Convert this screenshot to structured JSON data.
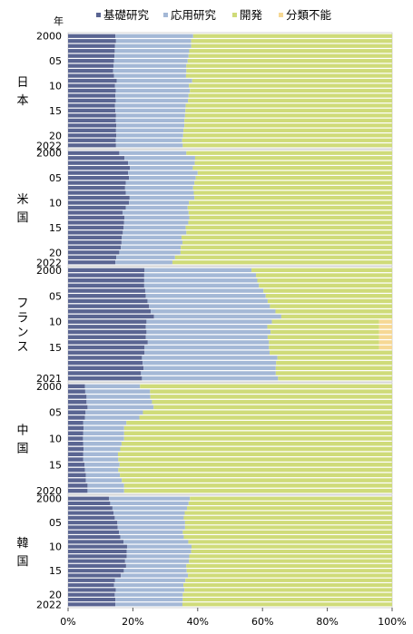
{
  "chart_data": {
    "type": "bar",
    "orientation": "horizontal",
    "stacked": true,
    "year_axis_label": "年",
    "legend": [
      {
        "key": "basic",
        "label": "基礎研究",
        "color": "#5a6592"
      },
      {
        "key": "applied",
        "label": "応用研究",
        "color": "#a4b8d6"
      },
      {
        "key": "dev",
        "label": "開発",
        "color": "#cfdb79"
      },
      {
        "key": "unclass",
        "label": "分類不能",
        "color": "#f6d894"
      }
    ],
    "xlim": [
      0,
      100
    ],
    "x_ticks": [
      "0%",
      "20%",
      "40%",
      "60%",
      "80%",
      "100%"
    ],
    "grid": false,
    "panels": [
      {
        "country": "日本",
        "years": [
          2000,
          2001,
          2002,
          2003,
          2004,
          2005,
          2006,
          2007,
          2008,
          2009,
          2010,
          2011,
          2012,
          2013,
          2014,
          2015,
          2016,
          2017,
          2018,
          2019,
          2020,
          2021,
          2022
        ],
        "tick_labels": [
          {
            "year": 2000,
            "label": "2000"
          },
          {
            "year": 2005,
            "label": "05"
          },
          {
            "year": 2010,
            "label": "10"
          },
          {
            "year": 2015,
            "label": "15"
          },
          {
            "year": 2020,
            "label": "20"
          },
          {
            "year": 2022,
            "label": "2022"
          }
        ],
        "basic": [
          14.6,
          14.8,
          14.5,
          14.4,
          14.3,
          14.2,
          14.0,
          13.9,
          14.2,
          15.0,
          14.5,
          14.7,
          14.6,
          14.7,
          14.5,
          14.6,
          14.8,
          14.7,
          14.9,
          14.8,
          14.9,
          14.7,
          14.8
        ],
        "applied": [
          24.0,
          23.2,
          23.5,
          23.0,
          22.9,
          22.7,
          22.5,
          22.6,
          22.2,
          23.3,
          22.8,
          22.9,
          22.6,
          22.3,
          21.8,
          21.6,
          21.3,
          21.2,
          21.0,
          20.8,
          20.6,
          20.5,
          20.6
        ],
        "dev": [
          61.4,
          62.0,
          62.0,
          62.6,
          62.8,
          63.1,
          63.5,
          63.5,
          63.6,
          61.7,
          62.7,
          62.4,
          62.8,
          63.0,
          63.7,
          63.8,
          63.9,
          64.1,
          64.1,
          64.4,
          64.5,
          64.8,
          64.6
        ],
        "unclass": [
          0,
          0,
          0,
          0,
          0,
          0,
          0,
          0,
          0,
          0,
          0,
          0,
          0,
          0,
          0,
          0,
          0,
          0,
          0,
          0,
          0,
          0,
          0
        ]
      },
      {
        "country": "米国",
        "years": [
          2000,
          2001,
          2002,
          2003,
          2004,
          2005,
          2006,
          2007,
          2008,
          2009,
          2010,
          2011,
          2012,
          2013,
          2014,
          2015,
          2016,
          2017,
          2018,
          2019,
          2020,
          2021,
          2022
        ],
        "tick_labels": [
          {
            "year": 2000,
            "label": "2000"
          },
          {
            "year": 2005,
            "label": "05"
          },
          {
            "year": 2010,
            "label": "10"
          },
          {
            "year": 2015,
            "label": "15"
          },
          {
            "year": 2020,
            "label": "20"
          },
          {
            "year": 2022,
            "label": "2022"
          }
        ],
        "basic": [
          15.8,
          17.4,
          18.5,
          19.1,
          18.5,
          18.8,
          17.8,
          17.6,
          17.8,
          19.0,
          18.8,
          17.8,
          16.8,
          17.4,
          17.3,
          17.1,
          16.9,
          16.6,
          16.5,
          16.3,
          15.8,
          14.9,
          14.6
        ],
        "applied": [
          20.7,
          21.8,
          20.6,
          19.4,
          21.5,
          20.6,
          21.2,
          21.0,
          21.0,
          20.0,
          18.5,
          19.1,
          20.4,
          20.0,
          19.8,
          19.2,
          19.6,
          18.4,
          18.8,
          18.5,
          18.9,
          18.1,
          17.6
        ],
        "dev": [
          63.5,
          60.8,
          60.9,
          61.5,
          60.0,
          60.6,
          61.0,
          61.4,
          61.2,
          61.0,
          62.7,
          63.1,
          62.8,
          62.6,
          62.9,
          63.7,
          63.5,
          65.0,
          64.7,
          65.2,
          65.3,
          67.0,
          67.8
        ],
        "unclass": [
          0,
          0,
          0,
          0,
          0,
          0,
          0,
          0,
          0,
          0,
          0,
          0,
          0,
          0,
          0,
          0,
          0,
          0,
          0,
          0,
          0,
          0,
          0
        ]
      },
      {
        "country": "フランス",
        "years": [
          2000,
          2001,
          2002,
          2003,
          2004,
          2005,
          2006,
          2007,
          2008,
          2009,
          2010,
          2011,
          2012,
          2013,
          2014,
          2015,
          2016,
          2017,
          2018,
          2019,
          2020,
          2021
        ],
        "tick_labels": [
          {
            "year": 2000,
            "label": "2000"
          },
          {
            "year": 2005,
            "label": "05"
          },
          {
            "year": 2010,
            "label": "10"
          },
          {
            "year": 2015,
            "label": "15"
          },
          {
            "year": 2021,
            "label": "2021"
          }
        ],
        "basic": [
          23.6,
          23.5,
          23.5,
          23.5,
          23.8,
          24.0,
          24.5,
          25.0,
          25.5,
          26.5,
          24.2,
          24.0,
          24.2,
          24.0,
          24.6,
          23.6,
          23.6,
          22.8,
          23.0,
          23.3,
          22.5,
          22.8
        ],
        "applied": [
          33.0,
          34.5,
          34.9,
          35.4,
          36.5,
          37.0,
          37.1,
          37.3,
          38.5,
          39.3,
          38.7,
          37.5,
          38.3,
          37.6,
          37.4,
          38.4,
          38.6,
          41.8,
          41.2,
          40.8,
          41.6,
          42.0
        ],
        "dev": [
          43.4,
          42.0,
          41.6,
          41.1,
          39.7,
          39.0,
          38.4,
          37.7,
          36.0,
          34.2,
          33.1,
          34.5,
          33.5,
          34.4,
          34.0,
          34.0,
          37.8,
          35.4,
          35.8,
          35.9,
          35.9,
          35.2
        ],
        "unclass": [
          0,
          0,
          0,
          0,
          0,
          0,
          0,
          0,
          0,
          0,
          4.0,
          4.0,
          4.0,
          4.0,
          4.0,
          4.0,
          0,
          0,
          0,
          0,
          0,
          0
        ]
      },
      {
        "country": "中国",
        "years": [
          2000,
          2001,
          2002,
          2003,
          2004,
          2005,
          2006,
          2007,
          2008,
          2009,
          2010,
          2011,
          2012,
          2013,
          2014,
          2015,
          2016,
          2017,
          2018,
          2019,
          2020
        ],
        "tick_labels": [
          {
            "year": 2000,
            "label": "2000"
          },
          {
            "year": 2005,
            "label": "05"
          },
          {
            "year": 2010,
            "label": "10"
          },
          {
            "year": 2015,
            "label": "15"
          },
          {
            "year": 2020,
            "label": "2020"
          }
        ],
        "basic": [
          5.2,
          5.3,
          5.7,
          5.7,
          6.0,
          5.4,
          5.2,
          4.7,
          4.8,
          4.7,
          4.6,
          4.7,
          4.8,
          4.7,
          4.7,
          5.1,
          5.2,
          5.5,
          5.5,
          6.0,
          6.0
        ],
        "applied": [
          17.0,
          20.0,
          19.7,
          20.2,
          20.4,
          17.7,
          16.8,
          13.3,
          12.5,
          12.6,
          12.7,
          11.8,
          11.3,
          10.7,
          10.8,
          10.8,
          10.3,
          10.5,
          11.1,
          11.3,
          11.3
        ],
        "dev": [
          77.8,
          74.7,
          74.6,
          74.1,
          73.6,
          76.9,
          78.0,
          82.0,
          82.7,
          82.7,
          82.7,
          83.5,
          83.9,
          84.6,
          84.5,
          84.1,
          84.5,
          84.0,
          83.4,
          82.7,
          82.7
        ],
        "unclass": [
          0,
          0,
          0,
          0,
          0,
          0,
          0,
          0,
          0,
          0,
          0,
          0,
          0,
          0,
          0,
          0,
          0,
          0,
          0,
          0,
          0
        ]
      },
      {
        "country": "韓国",
        "years": [
          2000,
          2001,
          2002,
          2003,
          2004,
          2005,
          2006,
          2007,
          2008,
          2009,
          2010,
          2011,
          2012,
          2013,
          2014,
          2015,
          2016,
          2017,
          2018,
          2019,
          2020,
          2021,
          2022
        ],
        "tick_labels": [
          {
            "year": 2000,
            "label": "2000"
          },
          {
            "year": 2005,
            "label": "05"
          },
          {
            "year": 2010,
            "label": "10"
          },
          {
            "year": 2015,
            "label": "15"
          },
          {
            "year": 2020,
            "label": "20"
          },
          {
            "year": 2022,
            "label": "2022"
          }
        ],
        "basic": [
          12.6,
          13.0,
          13.7,
          14.0,
          14.4,
          15.2,
          15.3,
          15.7,
          16.1,
          17.1,
          18.2,
          18.1,
          18.1,
          17.6,
          17.9,
          17.2,
          16.3,
          14.5,
          14.2,
          14.7,
          14.4,
          14.6,
          14.6
        ],
        "applied": [
          25.0,
          24.2,
          23.0,
          22.0,
          21.3,
          20.9,
          20.8,
          19.7,
          19.6,
          20.0,
          19.9,
          19.9,
          19.3,
          19.7,
          18.6,
          19.4,
          20.7,
          21.7,
          21.4,
          21.2,
          21.0,
          20.8,
          20.7
        ],
        "dev": [
          62.4,
          62.8,
          63.3,
          64.0,
          64.3,
          63.9,
          63.9,
          64.6,
          64.3,
          62.9,
          61.9,
          62.0,
          62.6,
          62.7,
          63.5,
          63.4,
          63.0,
          63.8,
          64.4,
          64.1,
          64.6,
          64.6,
          64.7
        ],
        "unclass": [
          0,
          0,
          0,
          0,
          0,
          0,
          0,
          0,
          0,
          0,
          0,
          0,
          0,
          0,
          0,
          0,
          0,
          0,
          0,
          0,
          0,
          0,
          0
        ]
      }
    ]
  }
}
